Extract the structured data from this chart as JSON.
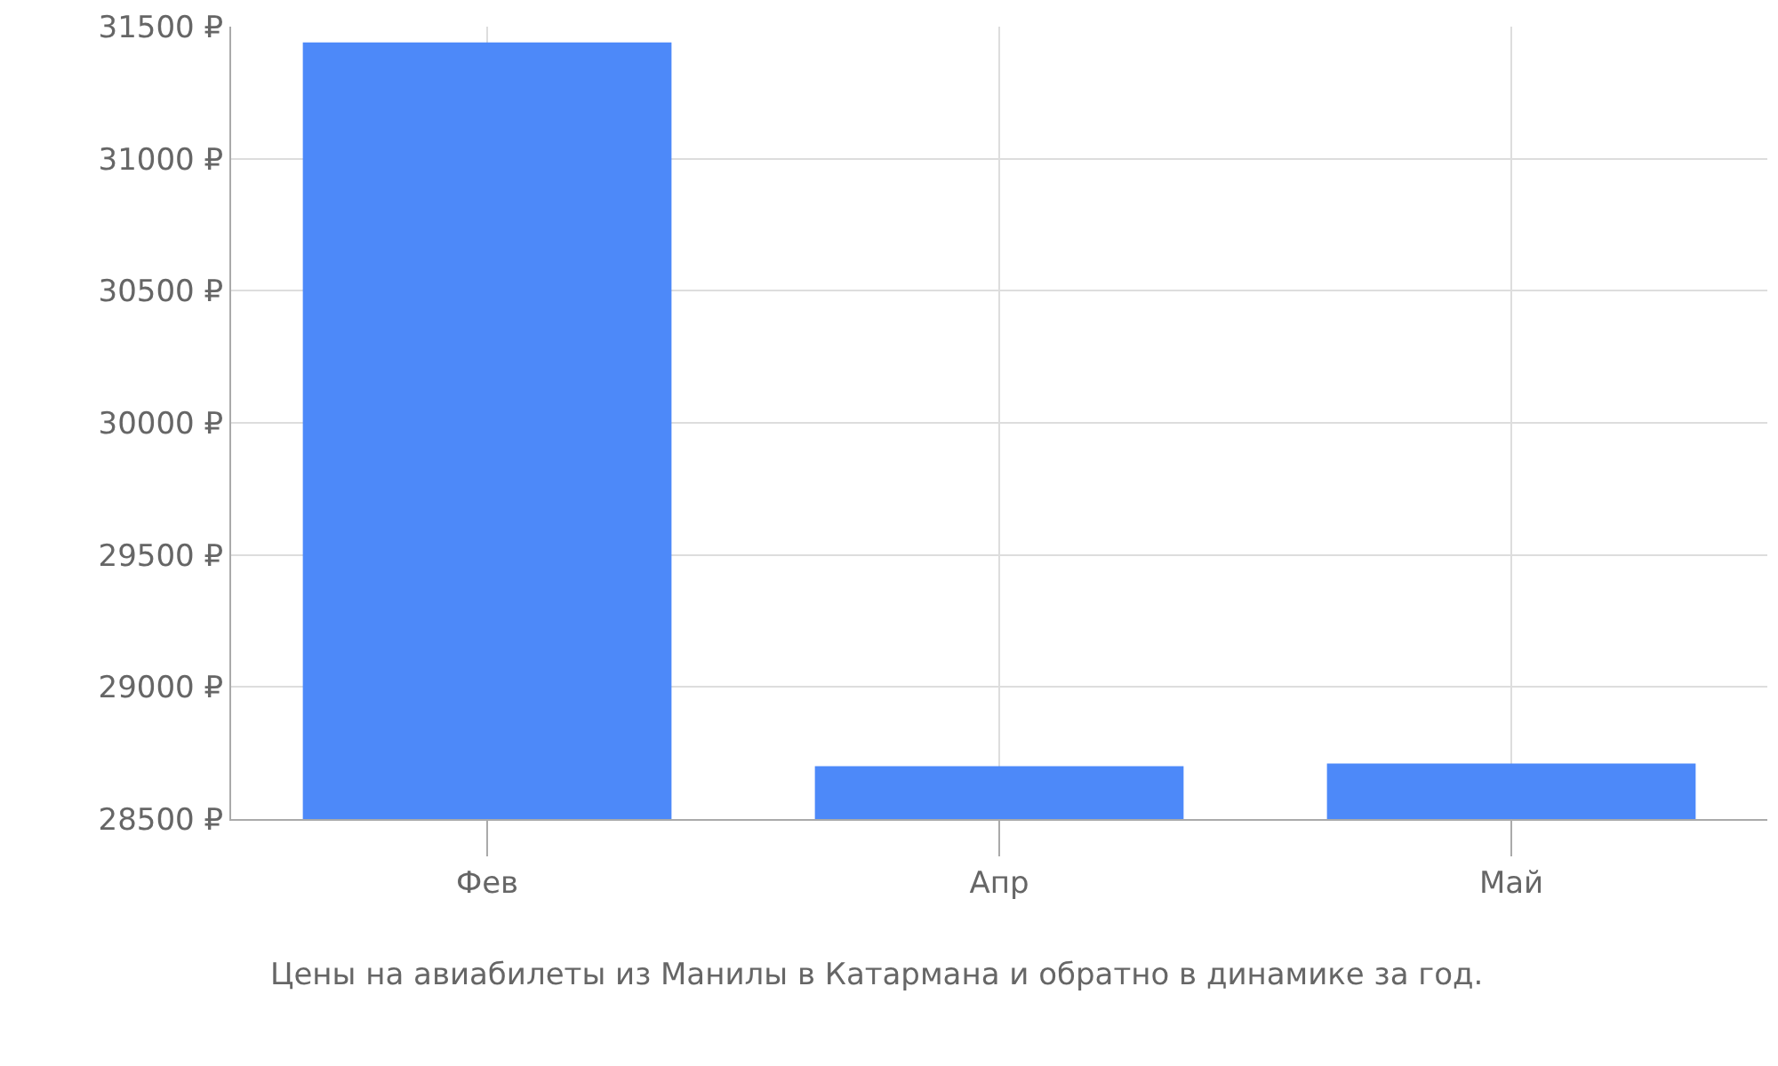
{
  "chart_data": {
    "type": "bar",
    "categories": [
      "Фев",
      "Апр",
      "Май"
    ],
    "values": [
      31440,
      28700,
      28710
    ],
    "color": "#4d89f9",
    "ylim": [
      28500,
      31500
    ],
    "yticks": [
      {
        "value": 28500,
        "label": "28500 ₽"
      },
      {
        "value": 29000,
        "label": "29000 ₽"
      },
      {
        "value": 29500,
        "label": "29500 ₽"
      },
      {
        "value": 30000,
        "label": "30000 ₽"
      },
      {
        "value": 30500,
        "label": "30500 ₽"
      },
      {
        "value": 31000,
        "label": "31000 ₽"
      },
      {
        "value": 31500,
        "label": "31500 ₽"
      }
    ],
    "grid": true,
    "annotations": [
      "Цены на авиабилеты из Манилы в Катармана и обратно в динамике за год."
    ]
  }
}
